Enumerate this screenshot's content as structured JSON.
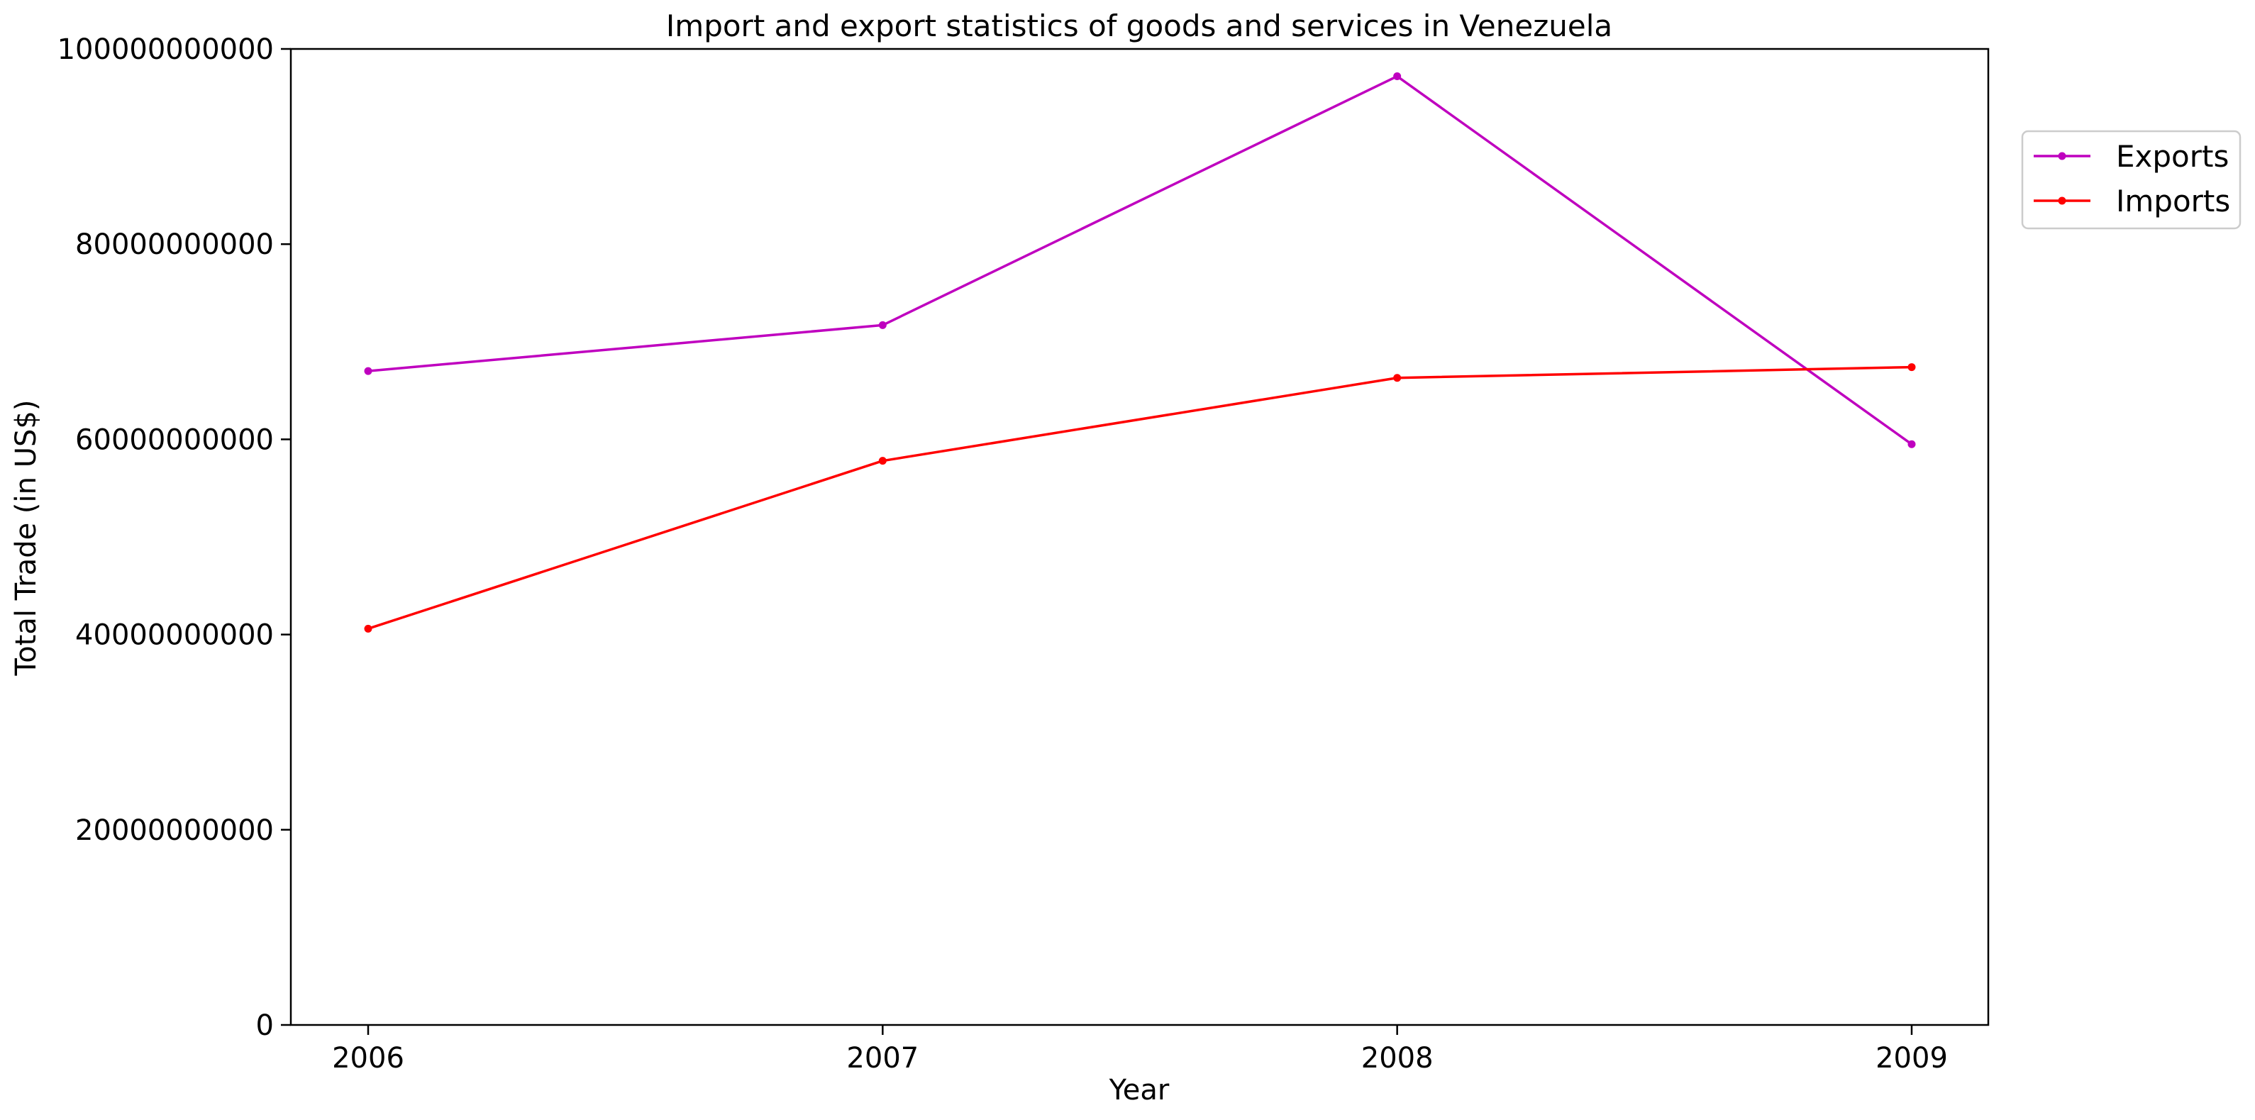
{
  "chart_data": {
    "type": "line",
    "title": "Import and export statistics of goods and services in Venezuela",
    "xlabel": "Year",
    "ylabel": "Total Trade (in US$)",
    "x": [
      "2006",
      "2007",
      "2008",
      "2009"
    ],
    "ylim": [
      0,
      100000000000
    ],
    "yticks": [
      0,
      20000000000,
      40000000000,
      60000000000,
      80000000000,
      100000000000
    ],
    "ytick_labels": [
      "0",
      "20000000000",
      "40000000000",
      "60000000000",
      "80000000000",
      "100000000000"
    ],
    "grid": false,
    "legend_position": "upper-right-outside",
    "series": [
      {
        "name": "Exports",
        "color": "#BF00BF",
        "values": [
          67000000000,
          71700000000,
          97200000000,
          59500000000
        ]
      },
      {
        "name": "Imports",
        "color": "#FF0000",
        "values": [
          40600000000,
          57800000000,
          66300000000,
          67400000000
        ]
      }
    ]
  }
}
